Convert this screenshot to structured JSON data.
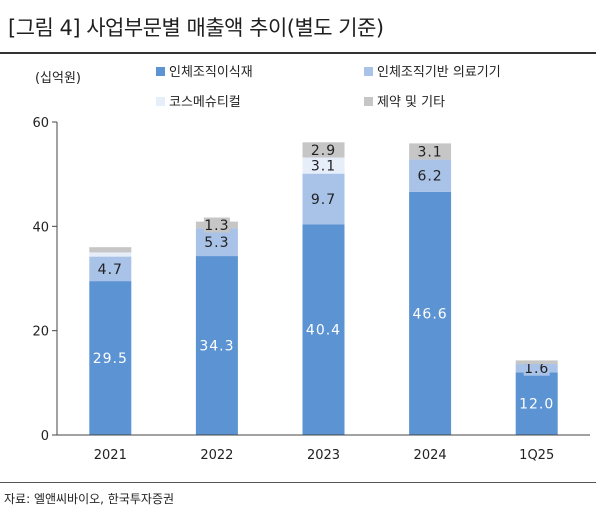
{
  "header": {
    "title": "[그림 4] 사업부문별 매출액 추이(별도 기준)"
  },
  "footer": {
    "source": "자료: 엘앤씨바이오, 한국투자증권"
  },
  "chart_data": {
    "type": "bar",
    "stacked": true,
    "unit_label": "(십억원)",
    "categories": [
      "2021",
      "2022",
      "2023",
      "2024",
      "1Q25"
    ],
    "ylim": [
      0,
      60
    ],
    "yticks": [
      0,
      20,
      40,
      60
    ],
    "legend_position": "top",
    "series": [
      {
        "name": "인체조직이식재",
        "color": "#5b93d3",
        "label_color": "#ffffff",
        "values": [
          29.5,
          34.3,
          40.4,
          46.6,
          12.0
        ],
        "labels": [
          "29.5",
          "34.3",
          "40.4",
          "46.6",
          "12.0"
        ]
      },
      {
        "name": "인체조직기반 의료기기",
        "color": "#a9c2e8",
        "label_color": "#222222",
        "values": [
          4.7,
          5.3,
          9.7,
          6.2,
          1.6
        ],
        "labels": [
          "4.7",
          "5.3",
          "9.7",
          "6.2",
          "1.6"
        ]
      },
      {
        "name": "코스메슈티컬",
        "color": "#e6eefa",
        "label_color": "#222222",
        "values": [
          0.8,
          0.0,
          3.1,
          0.0,
          0.0
        ],
        "labels": [
          "",
          "",
          "3.1",
          "",
          ""
        ]
      },
      {
        "name": "제약 및 기타",
        "color": "#c6c6c6",
        "label_color": "#222222",
        "values": [
          1.0,
          1.3,
          2.9,
          3.1,
          0.7
        ],
        "labels": [
          "",
          "1.3",
          "2.9",
          "3.1",
          ""
        ]
      }
    ]
  }
}
